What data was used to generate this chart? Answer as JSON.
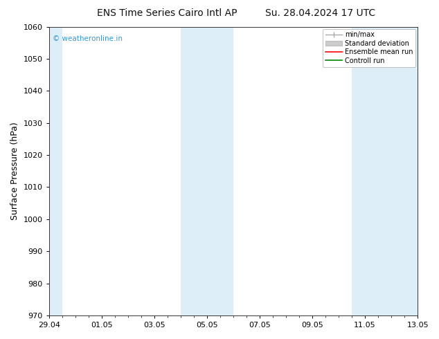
{
  "title_left": "ENS Time Series Cairo Intl AP",
  "title_right": "Su. 28.04.2024 17 UTC",
  "ylabel": "Surface Pressure (hPa)",
  "ylim_bottom": 970,
  "ylim_top": 1060,
  "yticks": [
    970,
    980,
    990,
    1000,
    1010,
    1020,
    1030,
    1040,
    1050,
    1060
  ],
  "xtick_labels": [
    "29.04",
    "01.05",
    "03.05",
    "05.05",
    "07.05",
    "09.05",
    "11.05",
    "13.05"
  ],
  "xtick_positions": [
    0,
    2,
    4,
    6,
    8,
    10,
    12,
    14
  ],
  "xlim": [
    0,
    14
  ],
  "shaded_bands": [
    {
      "x_start": -0.1,
      "x_end": 0.5
    },
    {
      "x_start": 5.0,
      "x_end": 7.0
    },
    {
      "x_start": 11.5,
      "x_end": 14.1
    }
  ],
  "watermark": "© weatheronline.in",
  "watermark_color": "#3399cc",
  "background_color": "#ffffff",
  "plot_bg_color": "#ffffff",
  "shade_color": "#ddeef8",
  "legend_minmax_color": "#aaaaaa",
  "legend_std_color": "#cccccc",
  "legend_ens_color": "#ff0000",
  "legend_ctrl_color": "#008800",
  "title_fontsize": 10,
  "axis_fontsize": 8,
  "ylabel_fontsize": 9
}
